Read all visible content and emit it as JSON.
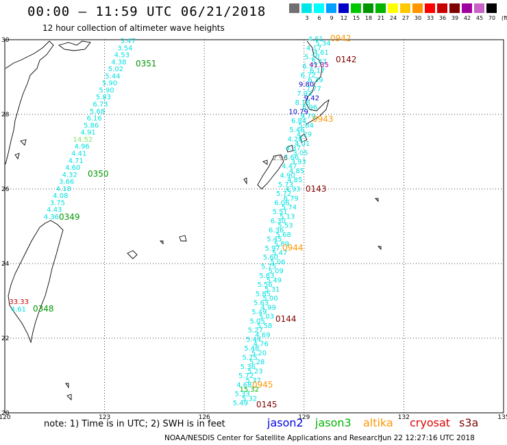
{
  "title": "00:00 – 11:59 UTC 06/21/2018",
  "subtitle": "12 hour collection of altimeter wave heights",
  "legend": {
    "unit_label": "(ft)",
    "bins": [
      {
        "label": "",
        "color": "#707070"
      },
      {
        "label": "3",
        "color": "#00e6e6"
      },
      {
        "label": "6",
        "color": "#00ffff"
      },
      {
        "label": "9",
        "color": "#00a0ff"
      },
      {
        "label": "12",
        "color": "#0000c8"
      },
      {
        "label": "15",
        "color": "#00c800"
      },
      {
        "label": "18",
        "color": "#009600"
      },
      {
        "label": "21",
        "color": "#00b400"
      },
      {
        "label": "24",
        "color": "#ffff00"
      },
      {
        "label": "27",
        "color": "#ffc800"
      },
      {
        "label": "30",
        "color": "#ff9600"
      },
      {
        "label": "33",
        "color": "#ff0000"
      },
      {
        "label": "36",
        "color": "#c80000"
      },
      {
        "label": "39",
        "color": "#800000"
      },
      {
        "label": "42",
        "color": "#a000a0"
      },
      {
        "label": "45",
        "color": "#c864c8"
      },
      {
        "label": "70",
        "color": "#000000"
      }
    ]
  },
  "map": {
    "lon_labels": [
      "120",
      "123",
      "126",
      "129",
      "132",
      "135"
    ],
    "lat_labels": [
      "30",
      "28",
      "26",
      "24",
      "22",
      "20"
    ]
  },
  "track_times": [
    {
      "text": "0351",
      "color": "#009600"
    },
    {
      "text": "0350",
      "color": "#009600"
    },
    {
      "text": "0349",
      "color": "#009600"
    },
    {
      "text": "0348",
      "color": "#009600"
    },
    {
      "text": "0942",
      "color": "#ff9600"
    },
    {
      "text": "0142",
      "color": "#800000"
    },
    {
      "text": "0943",
      "color": "#ff9600"
    },
    {
      "text": "0143",
      "color": "#800000"
    },
    {
      "text": "0944",
      "color": "#ff9600"
    },
    {
      "text": "0144",
      "color": "#800000"
    },
    {
      "text": "0945",
      "color": "#ff9600"
    },
    {
      "text": "0145",
      "color": "#800000"
    }
  ],
  "track_a": {
    "color": "#00e0e0",
    "values": [
      "3.47",
      "3.54",
      "4.53",
      "4.38",
      "5.02",
      "5.44",
      "5.90",
      "5.90",
      "5.83",
      "6.73",
      "5.68",
      "6.16",
      "5.86",
      "4.91",
      "14.52",
      "4.96",
      "4.41",
      "4.71",
      "4.60",
      "4.32",
      "3.66",
      "4.18",
      "4.08",
      "3.75",
      "4.43",
      "4.36"
    ],
    "highlight_index": 14,
    "highlight_color": "#80e060"
  },
  "track_a_south": [
    {
      "text": "33.33",
      "color": "#c80000"
    },
    {
      "text": "4.61",
      "color": "#00e0e0"
    }
  ],
  "track_b": {
    "color": "#00e0e0",
    "values": [
      "4.61",
      "5.34",
      "4.17",
      "4.61",
      "5.20",
      "5.47",
      "6.77",
      "6.17",
      "6.72",
      "6.39",
      "9.80",
      "7.77",
      "7.93",
      "9.42",
      "8.18",
      "6.96",
      "10.79",
      "9.79",
      "6.84",
      "5.84",
      "5.46",
      "4.29",
      "4.28",
      "4.01",
      "4.37",
      "3.05",
      "3.66",
      "3.93",
      "4.47",
      "4.85",
      "4.90",
      "4.85",
      "5.73",
      "4.93",
      "5.72",
      "6.79",
      "6.06",
      "5.74",
      "5.51",
      "5.13",
      "6.30",
      "5.53",
      "6.36",
      "5.68",
      "5.45",
      "5.89",
      "5.97",
      "5.47",
      "5.60",
      "5.06",
      "5.75",
      "5.09",
      "5.83",
      "5.49",
      "5.56",
      "5.31",
      "5.85",
      "5.00",
      "5.63",
      "4.99",
      "5.49",
      "5.03",
      "5.05",
      "5.58",
      "5.27",
      "4.69",
      "5.44",
      "4.76",
      "5.48",
      "5.20",
      "5.25",
      "5.28",
      "5.36",
      "5.23",
      "5.72",
      "5.37",
      "4.68",
      "15.32",
      "5.33",
      "5.32",
      "5.49"
    ],
    "special": [
      {
        "index": 13,
        "color": "#0000c8"
      },
      {
        "index": 16,
        "color": "#0000c8"
      },
      {
        "index": 10,
        "color": "#0000c8"
      },
      {
        "index": 77,
        "color": "#00b400"
      }
    ]
  },
  "track_b_extra": [
    {
      "text": "41.35",
      "color": "#a000a0"
    },
    {
      "text": "2.96",
      "color": "#707070"
    }
  ],
  "note": "note: 1) Time is in UTC; 2) SWH is in feet",
  "satellites": [
    {
      "name": "jason2",
      "color": "#0000e0"
    },
    {
      "name": "jason3",
      "color": "#00b400"
    },
    {
      "name": "altika",
      "color": "#ff9600"
    },
    {
      "name": "cryosat",
      "color": "#e00000"
    },
    {
      "name": "s3a",
      "color": "#800000"
    }
  ],
  "credit": "NOAA/NESDIS Center for Satellite Applications and Research",
  "timestamp": "Jun 22 12:27:16 UTC 2018"
}
